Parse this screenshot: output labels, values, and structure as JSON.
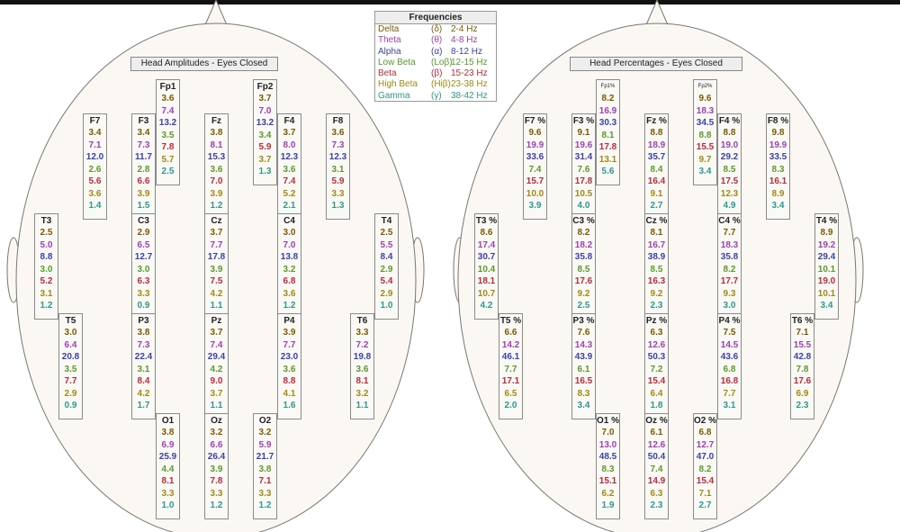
{
  "colors": {
    "delta": "#7a5a00",
    "theta": "#a13fb5",
    "alpha": "#3a3fb0",
    "lowbeta": "#5a9a2a",
    "beta": "#c02a3a",
    "highbeta": "#a08a10",
    "gamma": "#2a9a8a"
  },
  "legend": {
    "title": "Frequencies",
    "bands": [
      {
        "key": "delta",
        "name": "Delta",
        "symbol": "(δ)",
        "range": "2-4 Hz"
      },
      {
        "key": "theta",
        "name": "Theta",
        "symbol": "(θ)",
        "range": "4-8 Hz"
      },
      {
        "key": "alpha",
        "name": "Alpha",
        "symbol": "(α)",
        "range": "8-12 Hz"
      },
      {
        "key": "lowbeta",
        "name": "Low Beta",
        "symbol": "(Loβ)",
        "range": "12-15 Hz"
      },
      {
        "key": "beta",
        "name": "Beta",
        "symbol": "(β)",
        "range": "15-23 Hz"
      },
      {
        "key": "highbeta",
        "name": "High Beta",
        "symbol": "(Hiβ)",
        "range": "23-38 Hz"
      },
      {
        "key": "gamma",
        "name": "Gamma",
        "symbol": "(γ)",
        "range": "38-42 Hz"
      }
    ]
  },
  "amplitudes": {
    "title": "Head Amplitudes - Eyes Closed",
    "electrodes": [
      {
        "id": "Fp1",
        "label": "Fp1",
        "values": [
          "3.6",
          "7.4",
          "13.2",
          "3.5",
          "7.8",
          "5.7",
          "2.5"
        ]
      },
      {
        "id": "Fp2",
        "label": "Fp2",
        "values": [
          "3.7",
          "7.0",
          "13.2",
          "3.4",
          "5.9",
          "3.7",
          "1.3"
        ]
      },
      {
        "id": "F7",
        "label": "F7",
        "values": [
          "3.4",
          "7.1",
          "12.0",
          "2.6",
          "5.6",
          "3.6",
          "1.4"
        ]
      },
      {
        "id": "F3",
        "label": "F3",
        "values": [
          "3.4",
          "7.3",
          "11.7",
          "2.8",
          "6.6",
          "3.9",
          "1.5"
        ]
      },
      {
        "id": "Fz",
        "label": "Fz",
        "values": [
          "3.8",
          "8.1",
          "15.3",
          "3.6",
          "7.0",
          "3.9",
          "1.2"
        ]
      },
      {
        "id": "F4",
        "label": "F4",
        "values": [
          "3.7",
          "8.0",
          "12.3",
          "3.6",
          "7.4",
          "5.2",
          "2.1"
        ]
      },
      {
        "id": "F8",
        "label": "F8",
        "values": [
          "3.6",
          "7.3",
          "12.3",
          "3.1",
          "5.9",
          "3.3",
          "1.3"
        ]
      },
      {
        "id": "T3",
        "label": "T3",
        "values": [
          "2.5",
          "5.0",
          "8.8",
          "3.0",
          "5.2",
          "3.1",
          "1.2"
        ]
      },
      {
        "id": "C3",
        "label": "C3",
        "values": [
          "2.9",
          "6.5",
          "12.7",
          "3.0",
          "6.3",
          "3.3",
          "0.9"
        ]
      },
      {
        "id": "Cz",
        "label": "Cz",
        "values": [
          "3.7",
          "7.7",
          "17.8",
          "3.9",
          "7.5",
          "4.2",
          "1.1"
        ]
      },
      {
        "id": "C4",
        "label": "C4",
        "values": [
          "3.0",
          "7.0",
          "13.8",
          "3.2",
          "6.8",
          "3.6",
          "1.2"
        ]
      },
      {
        "id": "T4",
        "label": "T4",
        "values": [
          "2.5",
          "5.5",
          "8.4",
          "2.9",
          "5.4",
          "2.9",
          "1.0"
        ]
      },
      {
        "id": "T5",
        "label": "T5",
        "values": [
          "3.0",
          "6.4",
          "20.8",
          "3.5",
          "7.7",
          "2.9",
          "0.9"
        ]
      },
      {
        "id": "P3",
        "label": "P3",
        "values": [
          "3.8",
          "7.3",
          "22.4",
          "3.1",
          "8.4",
          "4.2",
          "1.7"
        ]
      },
      {
        "id": "Pz",
        "label": "Pz",
        "values": [
          "3.7",
          "7.4",
          "29.4",
          "4.2",
          "9.0",
          "3.7",
          "1.1"
        ]
      },
      {
        "id": "P4",
        "label": "P4",
        "values": [
          "3.9",
          "7.7",
          "23.0",
          "3.6",
          "8.8",
          "4.1",
          "1.6"
        ]
      },
      {
        "id": "T6",
        "label": "T6",
        "values": [
          "3.3",
          "7.2",
          "19.8",
          "3.6",
          "8.1",
          "3.2",
          "1.1"
        ]
      },
      {
        "id": "O1",
        "label": "O1",
        "values": [
          "3.8",
          "6.9",
          "25.9",
          "4.4",
          "8.1",
          "3.3",
          "1.0"
        ]
      },
      {
        "id": "Oz",
        "label": "Oz",
        "values": [
          "3.2",
          "6.6",
          "26.4",
          "3.9",
          "7.8",
          "3.3",
          "1.2"
        ]
      },
      {
        "id": "O2",
        "label": "O2",
        "values": [
          "3.2",
          "5.9",
          "21.7",
          "3.8",
          "7.1",
          "3.3",
          "1.2"
        ]
      }
    ]
  },
  "percentages": {
    "title": "Head Percentages - Eyes Closed",
    "electrodes": [
      {
        "id": "Fp1",
        "label": "Fp1%",
        "values": [
          "8.2",
          "16.9",
          "30.3",
          "8.1",
          "17.8",
          "13.1",
          "5.6"
        ]
      },
      {
        "id": "Fp2",
        "label": "Fp2%",
        "values": [
          "9.6",
          "18.3",
          "34.5",
          "8.8",
          "15.5",
          "9.7",
          "3.4"
        ]
      },
      {
        "id": "F7",
        "label": "F7 %",
        "values": [
          "9.6",
          "19.9",
          "33.6",
          "7.4",
          "15.7",
          "10.0",
          "3.9"
        ]
      },
      {
        "id": "F3",
        "label": "F3 %",
        "values": [
          "9.1",
          "19.6",
          "31.4",
          "7.6",
          "17.8",
          "10.5",
          "4.0"
        ]
      },
      {
        "id": "Fz",
        "label": "Fz %",
        "values": [
          "8.8",
          "18.9",
          "35.7",
          "8.4",
          "16.4",
          "9.1",
          "2.7"
        ]
      },
      {
        "id": "F4",
        "label": "F4 %",
        "values": [
          "8.8",
          "19.0",
          "29.2",
          "8.5",
          "17.5",
          "12.3",
          "4.9"
        ]
      },
      {
        "id": "F8",
        "label": "F8 %",
        "values": [
          "9.8",
          "19.9",
          "33.5",
          "8.3",
          "16.1",
          "8.9",
          "3.4"
        ]
      },
      {
        "id": "T3",
        "label": "T3 %",
        "values": [
          "8.6",
          "17.4",
          "30.7",
          "10.4",
          "18.1",
          "10.7",
          "4.2"
        ]
      },
      {
        "id": "C3",
        "label": "C3 %",
        "values": [
          "8.2",
          "18.2",
          "35.8",
          "8.5",
          "17.6",
          "9.2",
          "2.5"
        ]
      },
      {
        "id": "Cz",
        "label": "Cz %",
        "values": [
          "8.1",
          "16.7",
          "38.9",
          "8.5",
          "16.3",
          "9.2",
          "2.3"
        ]
      },
      {
        "id": "C4",
        "label": "C4 %",
        "values": [
          "7.7",
          "18.3",
          "35.8",
          "8.2",
          "17.7",
          "9.3",
          "3.0"
        ]
      },
      {
        "id": "T4",
        "label": "T4 %",
        "values": [
          "8.9",
          "19.2",
          "29.4",
          "10.1",
          "19.0",
          "10.1",
          "3.4"
        ]
      },
      {
        "id": "T5",
        "label": "T5 %",
        "values": [
          "6.6",
          "14.2",
          "46.1",
          "7.7",
          "17.1",
          "6.5",
          "2.0"
        ]
      },
      {
        "id": "P3",
        "label": "P3 %",
        "values": [
          "7.6",
          "14.3",
          "43.9",
          "6.1",
          "16.5",
          "8.3",
          "3.4"
        ]
      },
      {
        "id": "Pz",
        "label": "Pz %",
        "values": [
          "6.3",
          "12.6",
          "50.3",
          "7.2",
          "15.4",
          "6.4",
          "1.8"
        ]
      },
      {
        "id": "P4",
        "label": "P4 %",
        "values": [
          "7.5",
          "14.5",
          "43.6",
          "6.8",
          "16.8",
          "7.7",
          "3.1"
        ]
      },
      {
        "id": "T6",
        "label": "T6 %",
        "values": [
          "7.1",
          "15.5",
          "42.8",
          "7.8",
          "17.6",
          "6.9",
          "2.3"
        ]
      },
      {
        "id": "O1",
        "label": "O1 %",
        "values": [
          "7.0",
          "13.0",
          "48.5",
          "8.3",
          "15.1",
          "6.2",
          "1.9"
        ]
      },
      {
        "id": "Oz",
        "label": "Oz %",
        "values": [
          "6.1",
          "12.6",
          "50.4",
          "7.4",
          "14.9",
          "6.3",
          "2.3"
        ]
      },
      {
        "id": "O2",
        "label": "O2 %",
        "values": [
          "6.8",
          "12.7",
          "47.0",
          "8.2",
          "15.4",
          "7.1",
          "2.7"
        ]
      }
    ]
  }
}
